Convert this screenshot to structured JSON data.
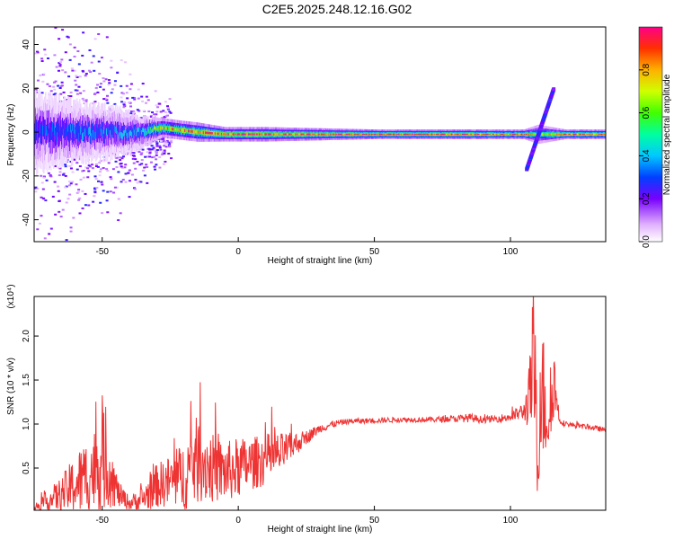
{
  "title": "C2E5.2025.248.12.16.G02",
  "chart_data": [
    {
      "type": "heatmap",
      "xlabel": "Height of straight line (km)",
      "ylabel": "Frequency (Hz)",
      "xlim": [
        -75,
        135
      ],
      "ylim": [
        -50,
        48
      ],
      "xticks": [
        -50,
        0,
        50,
        100
      ],
      "yticks": [
        -40,
        -20,
        0,
        20,
        40
      ],
      "colorbar": {
        "label": "Normalized spectral amplitude",
        "range": [
          0,
          1
        ],
        "ticks": [
          "0.0",
          "0.2",
          "0.4",
          "0.6",
          "0.8"
        ],
        "tick_values": [
          0.0,
          0.2,
          0.4,
          0.6,
          0.8
        ]
      },
      "ridge": [
        {
          "x": -75,
          "freq": 0,
          "amplitude": 0.3,
          "spread": 8
        },
        {
          "x": -60,
          "freq": 0,
          "amplitude": 0.35,
          "spread": 6
        },
        {
          "x": -45,
          "freq": 0,
          "amplitude": 0.35,
          "spread": 5
        },
        {
          "x": -35,
          "freq": 0,
          "amplitude": 0.45,
          "spread": 3
        },
        {
          "x": -28,
          "freq": 2,
          "amplitude": 0.8,
          "spread": 2
        },
        {
          "x": -22,
          "freq": 1,
          "amplitude": 0.85,
          "spread": 2
        },
        {
          "x": -15,
          "freq": 0,
          "amplitude": 0.9,
          "spread": 2
        },
        {
          "x": -5,
          "freq": -1,
          "amplitude": 0.95,
          "spread": 1.5
        },
        {
          "x": 10,
          "freq": -1,
          "amplitude": 0.95,
          "spread": 1.5
        },
        {
          "x": 50,
          "freq": -1,
          "amplitude": 1.0,
          "spread": 1
        },
        {
          "x": 85,
          "freq": -1,
          "amplitude": 1.0,
          "spread": 1
        },
        {
          "x": 95,
          "freq": -1,
          "amplitude": 0.9,
          "spread": 1
        },
        {
          "x": 105,
          "freq": -1,
          "amplitude": 0.95,
          "spread": 1
        },
        {
          "x": 110,
          "freq": -1,
          "amplitude": 0.6,
          "spread": 2
        },
        {
          "x": 120,
          "freq": -1,
          "amplitude": 0.95,
          "spread": 1
        },
        {
          "x": 135,
          "freq": -1,
          "amplitude": 0.95,
          "spread": 1
        }
      ],
      "chirp": {
        "x_start": 106,
        "freq_start": -17,
        "x_end": 116,
        "freq_end": 20,
        "amplitude": 0.25
      }
    },
    {
      "type": "line",
      "xlabel": "Height of straight line (km)",
      "ylabel": "SNR (10 * v/v)",
      "scale_label": "(x10⁴)",
      "xlim": [
        -75,
        135
      ],
      "ylim": [
        0.02,
        2.45
      ],
      "xticks": [
        -50,
        0,
        50,
        100
      ],
      "yticks": [
        0.5,
        1.0,
        1.5,
        2.0
      ],
      "ytick_labels": [
        "0.5",
        "1.0",
        "1.5",
        "2.0"
      ],
      "color": "#ee3333",
      "envelope": {
        "x": [
          -75,
          -65,
          -58,
          -52,
          -50,
          -47,
          -44,
          -40,
          -35,
          -30,
          -25,
          -20,
          -17,
          -14,
          -10,
          -5,
          0,
          5,
          10,
          15,
          20,
          25,
          30,
          35,
          40,
          50,
          60,
          70,
          80,
          85,
          90,
          95,
          100,
          105,
          107,
          108,
          109,
          110,
          111,
          112,
          114,
          116,
          118,
          120,
          125,
          130,
          135
        ],
        "base": [
          0.05,
          0.2,
          0.35,
          0.5,
          0.6,
          0.45,
          0.2,
          0.1,
          0.15,
          0.3,
          0.35,
          0.4,
          0.55,
          0.6,
          0.5,
          0.45,
          0.5,
          0.55,
          0.6,
          0.65,
          0.75,
          0.85,
          0.95,
          1.0,
          1.03,
          1.04,
          1.05,
          1.05,
          1.06,
          1.07,
          1.05,
          1.06,
          1.08,
          1.15,
          1.3,
          1.6,
          1.5,
          0.4,
          1.5,
          1.3,
          1.0,
          1.5,
          1.05,
          1.0,
          0.98,
          0.96,
          0.93
        ],
        "noise": [
          0.04,
          0.2,
          0.4,
          0.5,
          0.6,
          0.4,
          0.15,
          0.08,
          0.15,
          0.25,
          0.3,
          0.4,
          0.5,
          0.5,
          0.4,
          0.35,
          0.35,
          0.3,
          0.3,
          0.25,
          0.15,
          0.08,
          0.05,
          0.04,
          0.03,
          0.03,
          0.03,
          0.03,
          0.04,
          0.05,
          0.04,
          0.04,
          0.06,
          0.1,
          0.4,
          0.8,
          0.9,
          0.4,
          0.8,
          0.8,
          0.3,
          0.4,
          0.05,
          0.03,
          0.03,
          0.03,
          0.03
        ]
      }
    }
  ]
}
